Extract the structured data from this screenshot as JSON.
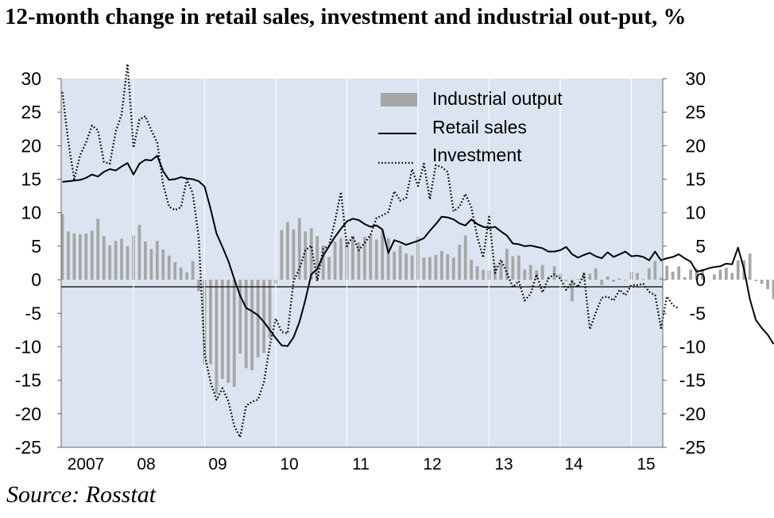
{
  "title": "12-month change in retail sales, investment and industrial out-put, %",
  "source": "Source: Rosstat",
  "chart_data": {
    "type": "bar+line",
    "title": "12-month change in retail sales, investment and industrial out-put, %",
    "ylim": [
      -25,
      30
    ],
    "y_ticks": [
      "30",
      "25",
      "20",
      "15",
      "10",
      "5",
      "0",
      "-5",
      "-10",
      "-15",
      "-20",
      "-25"
    ],
    "y_tick_values": [
      30,
      25,
      20,
      15,
      10,
      5,
      0,
      -5,
      -10,
      -15,
      -20,
      -25
    ],
    "x_tick_labels": [
      "2007",
      "08",
      "09",
      "10",
      "11",
      "12",
      "13",
      "14",
      "15"
    ],
    "x_start": "2007-01",
    "legend_position": "top-right",
    "grid": false,
    "colors": {
      "plot_background": "#dbe4f0",
      "industrial_output": "#a6a6a6",
      "retail_sales": "#000000",
      "investment": "#000000"
    },
    "series": [
      {
        "name": "Industrial output",
        "style": "bar",
        "values": [
          9.8,
          7.2,
          6.9,
          6.8,
          6.9,
          7.3,
          9.1,
          6.5,
          5.1,
          5.8,
          6.1,
          5.0,
          6.6,
          8.2,
          5.7,
          4.6,
          5.8,
          4.5,
          3.6,
          2.6,
          1.8,
          1.1,
          2.8,
          -1.7,
          -12.7,
          -12.6,
          -17.0,
          -14.8,
          -15.4,
          -16.0,
          -11.0,
          -13.2,
          -13.5,
          -11.6,
          -10.9,
          -8.7,
          -0.6,
          7.4,
          8.6,
          7.5,
          9.2,
          7.2,
          7.7,
          6.5,
          5.1,
          3.4,
          5.7,
          6.2,
          6.0,
          6.5,
          5.6,
          6.4,
          6.6,
          6.0,
          7.4,
          6.2,
          4.2,
          5.1,
          3.9,
          3.6,
          6.4,
          3.3,
          3.4,
          3.7,
          4.3,
          3.8,
          3.3,
          5.2,
          6.6,
          3.0,
          2.0,
          1.5,
          1.4,
          2.2,
          2.6,
          4.6,
          3.5,
          3.6,
          1.5,
          2.2,
          1.4,
          2.2,
          0.4,
          2.0,
          0.9,
          -0.2,
          -3.2,
          0.1,
          1.0,
          0.9,
          1.7,
          -0.8,
          0.5,
          -0.3,
          0.2,
          -0.1,
          1.2,
          1.0,
          0.1,
          1.7,
          2.8,
          0.3,
          2.1,
          1.2,
          2.0,
          0.4,
          1.5,
          1.7,
          1.6,
          0.0,
          0.8,
          1.5,
          1.8,
          1.0,
          2.9,
          2.9,
          3.9,
          -0.2,
          -0.6,
          -1.4,
          -2.9,
          -1.2,
          -4.8
        ],
        "x_start": "2007-01"
      },
      {
        "name": "Retail sales",
        "style": "line",
        "values": [
          14.6,
          14.7,
          14.8,
          14.9,
          15.2,
          15.7,
          15.4,
          16.1,
          16.5,
          16.3,
          16.9,
          17.4,
          15.7,
          17.3,
          17.9,
          17.8,
          18.5,
          16.2,
          14.9,
          15.0,
          15.3,
          15.1,
          15.0,
          14.7,
          13.9,
          10.6,
          6.9,
          4.9,
          2.8,
          0.1,
          -2.4,
          -4.2,
          -4.7,
          -5.3,
          -6.3,
          -7.5,
          -8.7,
          -9.8,
          -9.9,
          -8.6,
          -6.3,
          -3.0,
          0.8,
          1.6,
          3.6,
          5.0,
          6.4,
          7.6,
          8.7,
          9.1,
          8.9,
          8.3,
          7.9,
          8.1,
          7.5,
          4.0,
          5.9,
          5.6,
          5.2,
          5.5,
          5.8,
          6.2,
          7.3,
          8.3,
          9.4,
          9.3,
          9.0,
          8.4,
          8.1,
          9.0,
          8.3,
          7.9,
          7.7,
          7.9,
          7.2,
          6.6,
          5.4,
          5.3,
          5.0,
          5.1,
          4.9,
          4.7,
          4.2,
          4.2,
          4.4,
          4.9,
          3.8,
          3.3,
          3.7,
          4.0,
          3.5,
          3.2,
          4.1,
          3.4,
          3.8,
          4.2,
          3.5,
          3.6,
          3.4,
          2.9,
          4.2,
          2.9,
          3.2,
          3.4,
          3.8,
          3.2,
          2.7,
          1.2,
          1.4,
          1.7,
          1.9,
          2.0,
          2.4,
          2.3,
          4.8,
          1.6,
          -2.9,
          -6.0,
          -7.2,
          -8.2,
          -9.6
        ],
        "x_start": "2007-01"
      },
      {
        "name": "Investment",
        "style": "dotted",
        "values": [
          28.0,
          20.6,
          15.0,
          18.6,
          20.5,
          23.0,
          22.3,
          17.6,
          17.3,
          22.1,
          24.7,
          32.2,
          19.7,
          23.9,
          24.4,
          22.3,
          20.5,
          14.2,
          10.9,
          10.4,
          10.8,
          15.0,
          12.9,
          6.3,
          -11.1,
          -15.3,
          -17.9,
          -16.2,
          -18.1,
          -21.8,
          -23.5,
          -18.8,
          -18.2,
          -17.9,
          -15.3,
          -9.8,
          -5.8,
          -7.8,
          -8.0,
          -0.2,
          1.6,
          4.4,
          5.1,
          -0.2,
          4.6,
          5.1,
          8.8,
          13.1,
          5.0,
          6.5,
          4.4,
          5.5,
          6.7,
          9.2,
          9.6,
          10.1,
          13.2,
          11.8,
          12.2,
          16.5,
          14.0,
          17.3,
          12.0,
          17.1,
          16.8,
          16.1,
          10.2,
          10.9,
          12.8,
          10.8,
          6.4,
          3.3,
          9.4,
          1.0,
          3.0,
          1.0,
          -1.1,
          -0.2,
          -3.1,
          -2.1,
          0.8,
          -1.9,
          0.2,
          0.8,
          0.2,
          -1.5,
          -0.3,
          -1.1,
          0.9,
          -7.4,
          -4.9,
          -2.7,
          -2.5,
          -3.1,
          -1.5,
          -2.3,
          -0.8,
          -0.8,
          -0.6,
          -1.8,
          -2.3,
          -7.2,
          -2.5,
          -3.8,
          -4.3
        ],
        "x_start": "2007-01"
      }
    ]
  }
}
